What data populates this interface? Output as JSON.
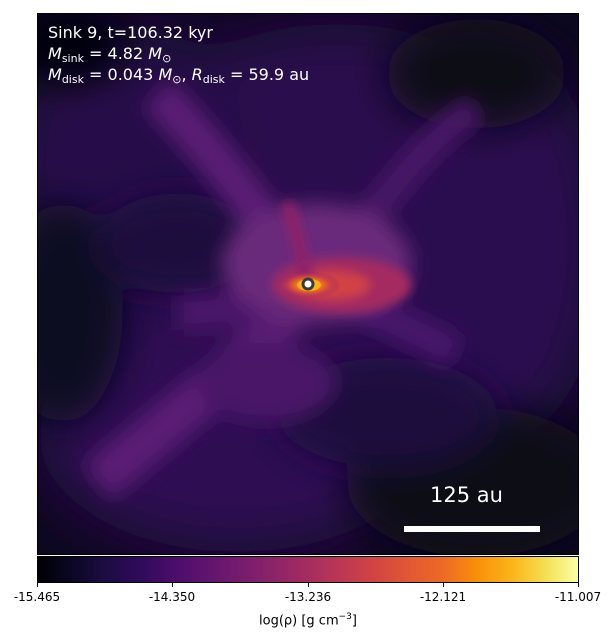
{
  "annotations": {
    "sink_line": "Sink 9, t=106.32 kyr",
    "sink_mass_value": "4.82",
    "disk_mass_value": "0.043",
    "disk_radius_value": "59.9",
    "mass_symbol": "M",
    "radius_symbol": "R",
    "sink_subscript": "sink",
    "disk_subscript": "disk",
    "solar_unit": "⊙",
    "length_unit": "au"
  },
  "scale_bar": {
    "label": "125 au"
  },
  "colorbar": {
    "colormap": "inferno",
    "min": -15.465,
    "max": -11.007,
    "ticks": [
      "-15.465",
      "-14.350",
      "-13.236",
      "-12.121",
      "-11.007"
    ],
    "label_prefix": "log(ρ) [g cm",
    "label_exponent": "−3",
    "label_suffix": "]"
  },
  "sink_marker": {
    "fill_color": "#ffffff",
    "ring_color": "#3a3a3a"
  },
  "colors": {
    "background_dark": "#0b0716",
    "envelope": "#3a1466",
    "filament": "#6a2a7c",
    "core": "#f98e09"
  }
}
